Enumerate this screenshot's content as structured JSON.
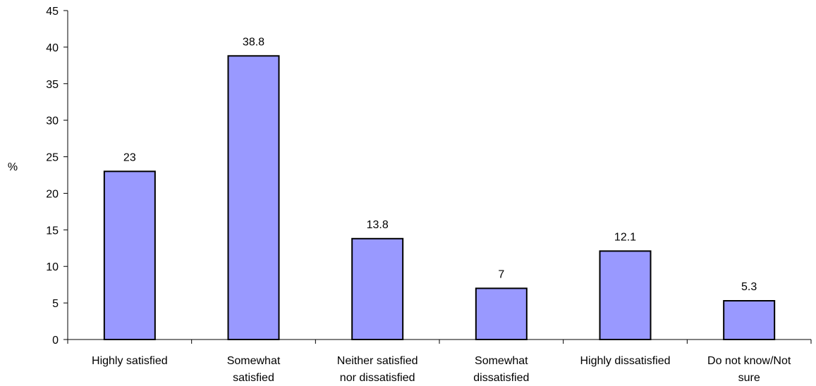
{
  "chart_data": {
    "type": "bar",
    "categories": [
      [
        "Highly satisfied"
      ],
      [
        "Somewhat",
        "satisfied"
      ],
      [
        "Neither satisfied",
        "nor dissatisfied"
      ],
      [
        "Somewhat",
        "dissatisfied"
      ],
      [
        "Highly dissatisfied"
      ],
      [
        "Do not know/Not",
        "sure"
      ]
    ],
    "values": [
      23,
      38.8,
      13.8,
      7,
      12.1,
      5.3
    ],
    "data_labels": [
      "23",
      "38.8",
      "13.8",
      "7",
      "12.1",
      "5.3"
    ],
    "title": "",
    "xlabel": "",
    "ylabel": "%",
    "ylim": [
      0,
      45
    ],
    "yticks": [
      0,
      5,
      10,
      15,
      20,
      25,
      30,
      35,
      40,
      45
    ],
    "grid": false,
    "legend": "none",
    "colors": {
      "bar_fill": "#9999ff",
      "bar_stroke": "#000000",
      "axis": "#000000"
    }
  }
}
